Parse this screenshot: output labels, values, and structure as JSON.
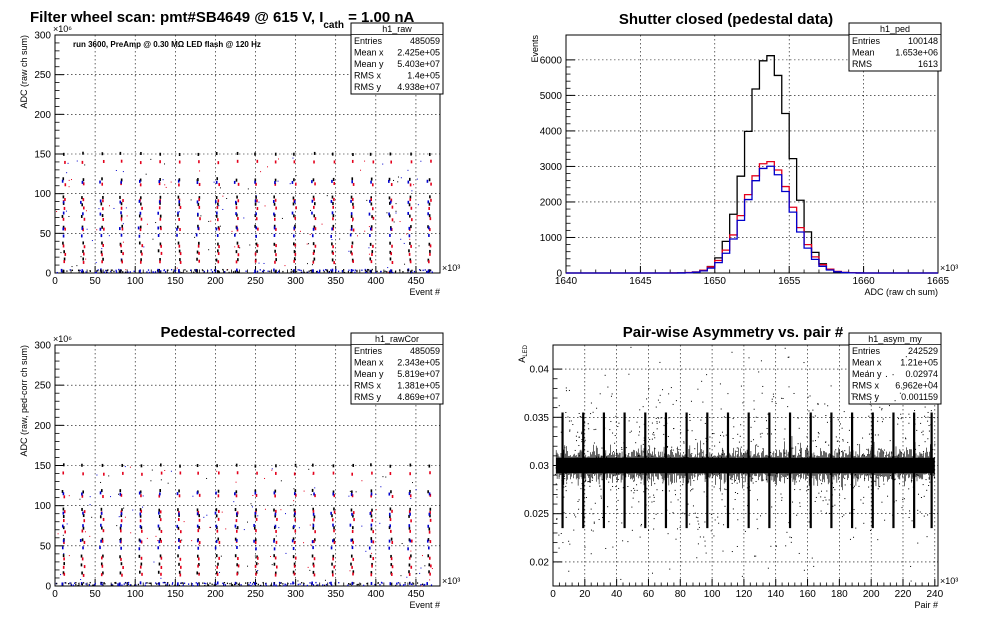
{
  "colors": {
    "black": "#000000",
    "red": "#e3001b",
    "blue": "#0000cc"
  },
  "chart_data": [
    {
      "id": "p1",
      "type": "scatter",
      "title": "Filter wheel scan: pmt#SB4649 @   615 V, I",
      "title_sub": "cath",
      "title_tail": " = 1.00 nA",
      "annotation": "run 3600, PreAmp @ 0.30 MΩ  LED flash @  120 Hz",
      "xlabel": "Event #",
      "ylabel": "ADC (raw ch sum)",
      "x_exponent": "×10³",
      "y_exponent": "×10⁶",
      "xlim": [
        0,
        480
      ],
      "ylim": [
        0,
        300
      ],
      "xticks": [
        0,
        50,
        100,
        150,
        200,
        250,
        300,
        350,
        400,
        450
      ],
      "yticks": [
        0,
        50,
        100,
        150,
        200,
        250,
        300
      ],
      "grid": true,
      "stats": {
        "name": "h1_raw",
        "rows": [
          [
            "Entries",
            "485059"
          ],
          [
            "Mean x",
            "2.425e+05"
          ],
          [
            "Mean y",
            "5.403e+07"
          ],
          [
            "RMS x",
            "1.4e+05"
          ],
          [
            "RMS y",
            "4.938e+07"
          ]
        ]
      },
      "levels_black": [
        150,
        118,
        95,
        87,
        72,
        58,
        37,
        27,
        17,
        2
      ],
      "levels_red": [
        140,
        112,
        92,
        82,
        68,
        55,
        34,
        24,
        14
      ],
      "levels_blue": [
        115,
        90,
        75,
        56,
        47,
        3
      ]
    },
    {
      "id": "p2",
      "type": "line",
      "title": "Shutter closed (pedestal data)",
      "xlabel": "ADC (raw ch sum)",
      "ylabel": "Events",
      "x_exponent": "×10³",
      "xlim": [
        1640,
        1665
      ],
      "ylim": [
        0,
        6700
      ],
      "xticks": [
        1640,
        1645,
        1650,
        1655,
        1660,
        1665
      ],
      "yticks": [
        0,
        1000,
        2000,
        3000,
        4000,
        5000,
        6000
      ],
      "grid": true,
      "stats": {
        "name": "h1_ped",
        "rows": [
          [
            "Entries",
            "100148"
          ],
          [
            "Mean",
            "1.653e+06"
          ],
          [
            "RMS",
            "1613"
          ]
        ]
      },
      "series": [
        {
          "color": "black",
          "mean": 1653.6,
          "sigma": 1.45,
          "peak": 6150
        },
        {
          "color": "red",
          "mean": 1653.6,
          "sigma": 1.6,
          "peak": 3150
        },
        {
          "color": "blue",
          "mean": 1653.6,
          "sigma": 1.55,
          "peak": 3020
        }
      ]
    },
    {
      "id": "p3",
      "type": "scatter",
      "title": "Pedestal-corrected",
      "xlabel": "Event #",
      "ylabel": "ADC (raw, ped-corr ch sum)",
      "x_exponent": "×10³",
      "y_exponent": "×10⁶",
      "xlim": [
        0,
        480
      ],
      "ylim": [
        0,
        300
      ],
      "xticks": [
        0,
        50,
        100,
        150,
        200,
        250,
        300,
        350,
        400,
        450
      ],
      "yticks": [
        0,
        50,
        100,
        150,
        200,
        250,
        300
      ],
      "grid": true,
      "stats": {
        "name": "h1_rawCor",
        "rows": [
          [
            "Entries",
            "485059"
          ],
          [
            "Mean x",
            "2.343e+05"
          ],
          [
            "Mean y",
            "5.819e+07"
          ],
          [
            "RMS x",
            "1.381e+05"
          ],
          [
            "RMS y",
            "4.869e+07"
          ]
        ]
      },
      "levels_black": [
        150,
        118,
        95,
        87,
        72,
        58,
        37,
        27,
        17
      ],
      "levels_red": [
        140,
        112,
        92,
        82,
        68,
        55,
        34,
        24,
        14
      ],
      "levels_blue": [
        115,
        90,
        75,
        56,
        47,
        3
      ]
    },
    {
      "id": "p4",
      "type": "scatter",
      "title": "Pair-wise Asymmetry vs. pair #",
      "xlabel": "Pair #",
      "ylabel": "A",
      "ylabel_sub": "LED",
      "x_exponent": "×10³",
      "xlim": [
        0,
        242
      ],
      "ylim": [
        0.0175,
        0.0425
      ],
      "xticks": [
        0,
        20,
        40,
        60,
        80,
        100,
        120,
        140,
        160,
        180,
        200,
        220,
        240
      ],
      "yticks": [
        0.02,
        0.025,
        0.03,
        0.035,
        0.04
      ],
      "grid": true,
      "stats": {
        "name": "h1_asym_my",
        "rows": [
          [
            "Entries",
            "242529"
          ],
          [
            "Mean x",
            "1.21e+05"
          ],
          [
            "Mean y",
            "0.02974"
          ],
          [
            "RMS x",
            "6.962e+04"
          ],
          [
            "RMS y",
            "0.001159"
          ]
        ]
      },
      "band_center": 0.03,
      "band_halfwidth": 0.0008,
      "spike_pairs": [
        6,
        19,
        32,
        45,
        58,
        71,
        84,
        97,
        110,
        123,
        136,
        149,
        162,
        175,
        188,
        201,
        214,
        227,
        238
      ],
      "spike_top": 0.0355,
      "spike_bottom": 0.0235
    }
  ]
}
